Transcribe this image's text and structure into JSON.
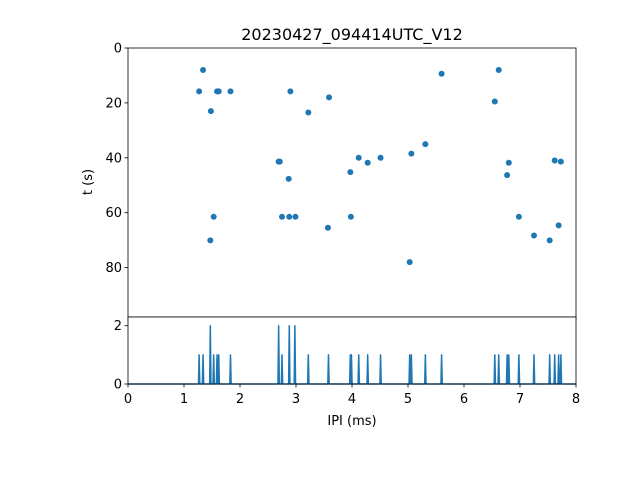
{
  "chart_data": [
    {
      "type": "scatter",
      "title": "20230427_094414UTC_V12",
      "xlabel": "",
      "ylabel": "t (s)",
      "xlim": [
        0,
        8
      ],
      "ylim": [
        0,
        98
      ],
      "y_inverted": true,
      "yticks": [
        0,
        20,
        40,
        60,
        80
      ],
      "xticks_labeled": false,
      "color": "#1f77b4",
      "points": [
        [
          1.27,
          15.8
        ],
        [
          1.34,
          8.0
        ],
        [
          1.48,
          23.0
        ],
        [
          1.59,
          15.8
        ],
        [
          1.62,
          15.8
        ],
        [
          1.83,
          15.8
        ],
        [
          1.53,
          61.5
        ],
        [
          1.47,
          70.1
        ],
        [
          2.69,
          41.4
        ],
        [
          2.71,
          41.4
        ],
        [
          2.75,
          61.5
        ],
        [
          2.87,
          47.7
        ],
        [
          2.88,
          61.5
        ],
        [
          2.9,
          15.8
        ],
        [
          2.99,
          61.5
        ],
        [
          3.22,
          23.5
        ],
        [
          3.57,
          65.5
        ],
        [
          3.59,
          18.0
        ],
        [
          3.97,
          45.2
        ],
        [
          3.98,
          61.5
        ],
        [
          4.12,
          40.0
        ],
        [
          4.28,
          41.8
        ],
        [
          4.51,
          40.0
        ],
        [
          5.03,
          78.0
        ],
        [
          5.06,
          38.5
        ],
        [
          5.31,
          35.0
        ],
        [
          5.6,
          9.4
        ],
        [
          6.55,
          19.5
        ],
        [
          6.62,
          8.0
        ],
        [
          6.77,
          46.3
        ],
        [
          6.8,
          41.8
        ],
        [
          6.98,
          61.5
        ],
        [
          7.25,
          68.3
        ],
        [
          7.53,
          70.1
        ],
        [
          7.62,
          41.0
        ],
        [
          7.69,
          64.6
        ],
        [
          7.73,
          41.4
        ]
      ]
    },
    {
      "type": "line",
      "xlabel": "IPI (ms)",
      "ylabel": "",
      "xlim": [
        0,
        8
      ],
      "ylim": [
        0,
        2.3
      ],
      "xticks": [
        0,
        1,
        2,
        3,
        4,
        5,
        6,
        7,
        8
      ],
      "yticks": [
        0,
        2
      ],
      "color": "#1f77b4",
      "spikes": [
        [
          1.27,
          1
        ],
        [
          1.34,
          1
        ],
        [
          1.47,
          2
        ],
        [
          1.53,
          1
        ],
        [
          1.59,
          1
        ],
        [
          1.62,
          1
        ],
        [
          1.83,
          1
        ],
        [
          2.69,
          2
        ],
        [
          2.75,
          1
        ],
        [
          2.88,
          2
        ],
        [
          2.98,
          2
        ],
        [
          3.22,
          1
        ],
        [
          3.58,
          1
        ],
        [
          3.97,
          1
        ],
        [
          3.99,
          1
        ],
        [
          4.12,
          1
        ],
        [
          4.28,
          1
        ],
        [
          4.51,
          1
        ],
        [
          5.03,
          1
        ],
        [
          5.06,
          1
        ],
        [
          5.31,
          1
        ],
        [
          5.6,
          1
        ],
        [
          6.55,
          1
        ],
        [
          6.62,
          1
        ],
        [
          6.77,
          1
        ],
        [
          6.8,
          1
        ],
        [
          6.98,
          1
        ],
        [
          7.25,
          1
        ],
        [
          7.53,
          1
        ],
        [
          7.62,
          1
        ],
        [
          7.69,
          1
        ],
        [
          7.73,
          1
        ]
      ]
    }
  ]
}
